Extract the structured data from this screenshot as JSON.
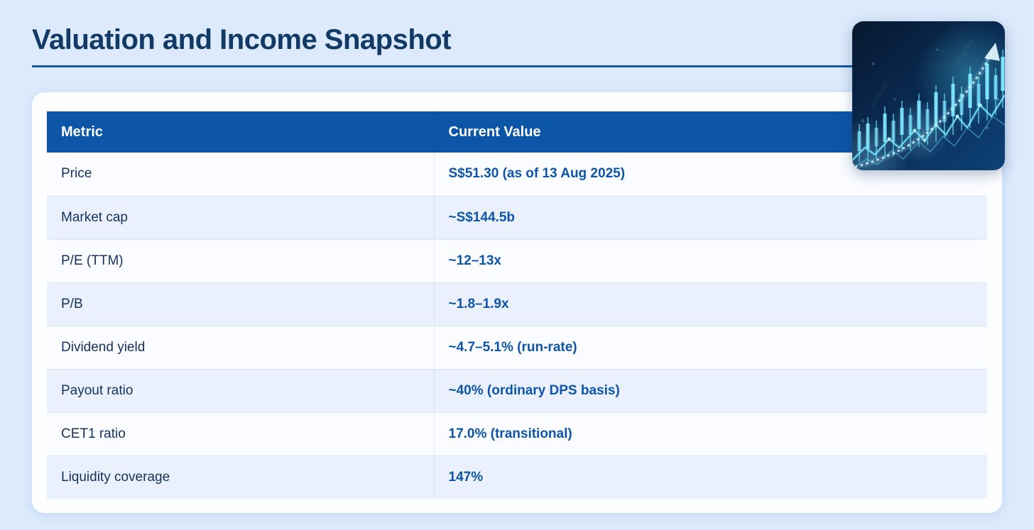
{
  "page": {
    "title": "Valuation and Income Snapshot"
  },
  "table": {
    "columns": [
      "Metric",
      "Current Value"
    ],
    "rows": [
      {
        "metric": "Price",
        "value": "S$51.30 (as of 13 Aug 2025)"
      },
      {
        "metric": "Market cap",
        "value": "~S$144.5b"
      },
      {
        "metric": "P/E (TTM)",
        "value": "~12–13x"
      },
      {
        "metric": "P/B",
        "value": "~1.8–1.9x"
      },
      {
        "metric": "Dividend yield",
        "value": "~4.7–5.1% (run-rate)"
      },
      {
        "metric": "Payout ratio",
        "value": "~40% (ordinary DPS basis)"
      },
      {
        "metric": "CET1 ratio",
        "value": "17.0% (transitional)"
      },
      {
        "metric": "Liquidity coverage",
        "value": "147%"
      }
    ]
  },
  "thumbnail": {
    "alt": "glowing-stock-chart-illustration",
    "watermark": "pngtree"
  },
  "colors": {
    "page_bg": "#dceafc",
    "card_bg": "#fdfeff",
    "header_bg": "#0d55a6",
    "header_text": "#ffffff",
    "row_alt_bg": "#eaf1fc",
    "row_bg": "#fafcff",
    "row_divider": "#d9e6f6",
    "metric_text": "#14315e",
    "value_text": "#0e55a8",
    "title_text": "#123a66",
    "rule_blue": "#1456a6"
  }
}
